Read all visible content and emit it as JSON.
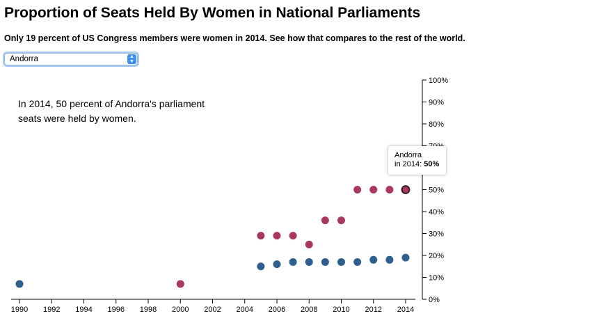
{
  "header": {
    "title": "Proportion of Seats Held By Women in National Parliaments",
    "subtitle": "Only 19 percent of US Congress members were women in 2014. See how that compares to the rest of the world."
  },
  "country_select": {
    "selected": "Andorra"
  },
  "annotation": "In 2014, 50 percent of Andorra's parliament seats were held by women.",
  "tooltip": {
    "line1": "Andorra",
    "line2_prefix": "in 2014: ",
    "value": "50%"
  },
  "colors": {
    "selected_country": "#a8385f",
    "united_states": "#2e5f8f"
  },
  "chart_data": {
    "type": "scatter",
    "x_ticks": [
      "1990",
      "1992",
      "1994",
      "1996",
      "1998",
      "2000",
      "2002",
      "2004",
      "2006",
      "2008",
      "2010",
      "2012",
      "2014"
    ],
    "y_ticks": [
      "0%",
      "10%",
      "20%",
      "30%",
      "40%",
      "50%",
      "60%",
      "70%",
      "80%",
      "90%",
      "100%"
    ],
    "xlim": [
      1990,
      2014
    ],
    "ylim": [
      0,
      100
    ],
    "y_axis_side": "right",
    "grid": false,
    "series": [
      {
        "color": "#2e5f8f",
        "points": [
          {
            "x": 1990,
            "y": 7
          },
          {
            "x": 2005,
            "y": 15
          },
          {
            "x": 2006,
            "y": 16
          },
          {
            "x": 2007,
            "y": 17
          },
          {
            "x": 2008,
            "y": 17
          },
          {
            "x": 2009,
            "y": 17
          },
          {
            "x": 2010,
            "y": 17
          },
          {
            "x": 2011,
            "y": 17
          },
          {
            "x": 2012,
            "y": 18
          },
          {
            "x": 2013,
            "y": 18
          },
          {
            "x": 2014,
            "y": 19
          }
        ]
      },
      {
        "color": "#a8385f",
        "points": [
          {
            "x": 2000,
            "y": 7
          },
          {
            "x": 2005,
            "y": 29
          },
          {
            "x": 2006,
            "y": 29
          },
          {
            "x": 2007,
            "y": 29
          },
          {
            "x": 2008,
            "y": 25
          },
          {
            "x": 2009,
            "y": 36
          },
          {
            "x": 2010,
            "y": 36
          },
          {
            "x": 2011,
            "y": 50
          },
          {
            "x": 2012,
            "y": 50
          },
          {
            "x": 2013,
            "y": 50
          },
          {
            "x": 2014,
            "y": 50
          }
        ],
        "highlight": {
          "x": 2014,
          "y": 50
        }
      }
    ]
  }
}
